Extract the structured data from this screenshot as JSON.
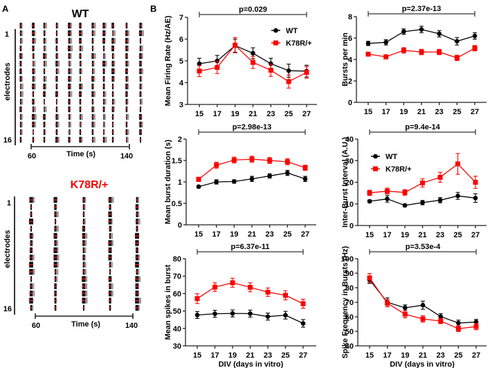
{
  "panels": {
    "A": {
      "label": "A",
      "rasters": [
        {
          "title": "WT",
          "title_color": "#000000",
          "ylabel": "electrodes",
          "electrode_first": "1",
          "electrode_last": "16",
          "n_electrodes": 16,
          "time_label": "Time (s)",
          "time_start": "60",
          "time_end": "140",
          "time_range": [
            60,
            140
          ],
          "burst_times_s": [
            51.5,
            61.7,
            70.7,
            80.8,
            91.0,
            100.0,
            110.1,
            119.2,
            126.5,
            137.7,
            149.0
          ]
        },
        {
          "title": "K78R/+",
          "title_color": "#ff0000",
          "ylabel": "electrodes",
          "electrode_first": "1",
          "electrode_last": "16",
          "n_electrodes": 16,
          "time_label": "Time (s)",
          "time_start": "60",
          "time_end": "140",
          "time_range": [
            60,
            140
          ],
          "burst_times_s": [
            56.6,
            76.5,
            99.7,
            121.3,
            143.4
          ]
        }
      ]
    },
    "B": {
      "label": "B"
    }
  },
  "colors": {
    "wt": "#000000",
    "k78r": "#ff0000",
    "axis": "#222222"
  },
  "chart_data": [
    {
      "type": "line",
      "title": "",
      "ylabel": "Mean Firing Rate (Hz/AE)",
      "xlabel": "",
      "x": [
        15,
        17,
        19,
        21,
        23,
        25,
        27
      ],
      "ylim": [
        3,
        7
      ],
      "yticks": [
        3,
        4,
        5,
        6,
        7
      ],
      "annotation": "p=0.029",
      "legend": "top-right",
      "series": [
        {
          "name": "WT",
          "values": [
            4.87,
            5.0,
            5.7,
            5.35,
            4.87,
            4.55,
            4.53
          ],
          "err": [
            0.25,
            0.25,
            0.3,
            0.25,
            0.25,
            0.3,
            0.27
          ]
        },
        {
          "name": "K78R/+",
          "values": [
            4.53,
            4.7,
            5.72,
            4.93,
            4.57,
            4.05,
            4.47
          ],
          "err": [
            0.25,
            0.28,
            0.35,
            0.28,
            0.28,
            0.3,
            0.27
          ]
        }
      ]
    },
    {
      "type": "line",
      "title": "",
      "ylabel": "Bursts per min",
      "xlabel": "",
      "x": [
        15,
        17,
        19,
        21,
        23,
        25,
        27
      ],
      "ylim": [
        0,
        8
      ],
      "yticks": [
        0,
        2,
        4,
        6,
        8
      ],
      "annotation": "p=2.37e-13",
      "legend": "none",
      "series": [
        {
          "name": "WT",
          "values": [
            5.5,
            5.6,
            6.6,
            6.8,
            6.4,
            5.7,
            6.2
          ],
          "err": [
            0.2,
            0.25,
            0.25,
            0.3,
            0.3,
            0.35,
            0.3
          ]
        },
        {
          "name": "K78R/+",
          "values": [
            4.5,
            4.25,
            4.85,
            4.7,
            4.7,
            4.15,
            5.05
          ],
          "err": [
            0.15,
            0.2,
            0.25,
            0.25,
            0.25,
            0.25,
            0.25
          ]
        }
      ]
    },
    {
      "type": "line",
      "title": "",
      "ylabel": "Mean burst duration (s)",
      "xlabel": "",
      "x": [
        15,
        17,
        19,
        21,
        23,
        25,
        27
      ],
      "ylim": [
        0,
        2
      ],
      "yticks": [
        0,
        0.5,
        1,
        1.5,
        2
      ],
      "ytick_labels": [
        "0",
        "0.5",
        "1",
        "1.5",
        "2"
      ],
      "annotation": "p=2.98e-13",
      "legend": "none",
      "series": [
        {
          "name": "WT",
          "values": [
            0.89,
            1.0,
            1.01,
            1.07,
            1.14,
            1.21,
            1.07
          ],
          "err": [
            0.03,
            0.05,
            0.04,
            0.06,
            0.05,
            0.06,
            0.06
          ]
        },
        {
          "name": "K78R/+",
          "values": [
            1.06,
            1.39,
            1.51,
            1.53,
            1.5,
            1.47,
            1.33
          ],
          "err": [
            0.05,
            0.07,
            0.07,
            0.07,
            0.07,
            0.07,
            0.06
          ]
        }
      ]
    },
    {
      "type": "line",
      "title": "",
      "ylabel": "Inter-Burst Interval (A.U.)",
      "xlabel": "",
      "x": [
        15,
        17,
        19,
        21,
        23,
        25,
        27
      ],
      "ylim": [
        0,
        40
      ],
      "yticks": [
        0,
        10,
        20,
        30,
        40
      ],
      "annotation": "p=9.4e-14",
      "legend": "top-left",
      "series": [
        {
          "name": "WT",
          "values": [
            11.2,
            12.3,
            9.3,
            10.6,
            11.7,
            13.7,
            12.7
          ],
          "err": [
            0.6,
            1.5,
            0.6,
            1.0,
            1.2,
            1.6,
            2.0
          ]
        },
        {
          "name": "K78R/+",
          "values": [
            15.1,
            15.9,
            15.3,
            19.7,
            22.3,
            28.5,
            20.0
          ],
          "err": [
            1.2,
            1.4,
            1.3,
            1.9,
            2.3,
            4.8,
            2.8
          ]
        }
      ]
    },
    {
      "type": "line",
      "title": "",
      "ylabel": "Mean spikes in burst",
      "xlabel": "DIV (days in vitro)",
      "x": [
        15,
        17,
        19,
        21,
        23,
        25,
        27
      ],
      "ylim": [
        30,
        80
      ],
      "yticks": [
        30,
        40,
        50,
        60,
        70,
        80
      ],
      "annotation": "p=6.37e-11",
      "legend": "none",
      "series": [
        {
          "name": "WT",
          "values": [
            47.7,
            48.4,
            48.6,
            48.5,
            46.8,
            47.6,
            42.9
          ],
          "err": [
            2.0,
            2.0,
            2.0,
            2.0,
            2.0,
            2.2,
            2.2
          ]
        },
        {
          "name": "K78R/+",
          "values": [
            57.1,
            63.7,
            66.2,
            63.6,
            60.8,
            59.0,
            54.2
          ],
          "err": [
            2.8,
            2.5,
            2.6,
            2.6,
            2.4,
            2.6,
            2.6
          ]
        }
      ]
    },
    {
      "type": "line",
      "title": "",
      "ylabel": "Spike Frequency in Bursts (Hz)",
      "xlabel": "DIV (days in vitro)",
      "x": [
        15,
        17,
        19,
        21,
        23,
        25,
        27
      ],
      "ylim": [
        40,
        100
      ],
      "yticks": [
        40,
        50,
        60,
        70,
        80,
        90,
        100
      ],
      "annotation": "p=3.53e-4",
      "legend": "none",
      "series": [
        {
          "name": "WT",
          "values": [
            85.5,
            70.0,
            66.2,
            68.0,
            60.2,
            55.7,
            56.4
          ],
          "err": [
            2.5,
            3.0,
            2.0,
            2.8,
            2.0,
            2.0,
            1.8
          ]
        },
        {
          "name": "K78R/+",
          "values": [
            86.8,
            69.4,
            61.8,
            58.5,
            57.1,
            51.8,
            53.3
          ],
          "err": [
            3.0,
            2.5,
            2.5,
            2.2,
            1.8,
            2.0,
            2.2
          ]
        }
      ]
    }
  ]
}
